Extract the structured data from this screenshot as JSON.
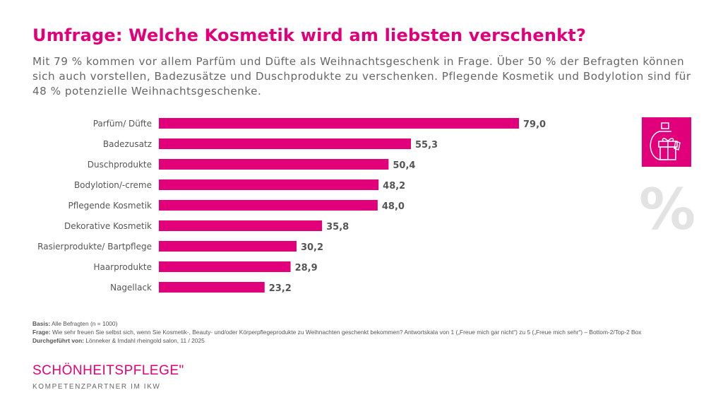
{
  "title": "Umfrage: Welche Kosmetik wird am liebsten verschenkt?",
  "subtitle": "Mit 79 % kommen vor allem Parfüm und Düfte als Weihnachtsgeschenk in Frage. Über 50 % der Befragten können sich auch vorstellen, Badezusätze und Duschprodukte zu verschenken. Pflegende Kosmetik und Bodylotion sind für 48 % potenzielle Weihnachtsgeschenke.",
  "chart_data": {
    "type": "bar",
    "orientation": "horizontal",
    "categories": [
      "Parfüm/ Düfte",
      "Badezusatz",
      "Duschprodukte",
      "Bodylotion/-creme",
      "Pflegende Kosmetik",
      "Dekorative Kosmetik",
      "Rasierprodukte/ Bartpflege",
      "Haarprodukte",
      "Nagellack"
    ],
    "values": [
      79.0,
      55.3,
      50.4,
      48.2,
      48.0,
      35.8,
      30.2,
      28.9,
      23.2
    ],
    "value_labels": [
      "79,0",
      "55,3",
      "50,4",
      "48,2",
      "48,0",
      "35,8",
      "30,2",
      "28,9",
      "23,2"
    ],
    "unit": "%",
    "bar_color": "#e2007a",
    "grid": false
  },
  "icons": {
    "gift_perfume": "gift-perfume-icon",
    "percent": "%"
  },
  "notes": {
    "basis_label": "Basis:",
    "basis": "Alle Befragten (n = 1000)",
    "frage_label": "Frage:",
    "frage": "Wie sehr freuen Sie selbst sich, wenn Sie Kosmetik-, Beauty- und/oder Körperpflegeprodukte zu Weihnachten geschenkt bekommen? Antwortskala von 1 („Freue mich gar nicht“) zu 5  („Freue mich sehr“) – Bottom-2/Top-2 Box",
    "durch_label": "Durchgeführt von:",
    "durch": "Lönneker & Imdahl rheingold salon, 11 / 2025"
  },
  "logo": {
    "name": "SCHÖNHEITSPFLEGE\"",
    "tagline": "KOMPETENZPARTNER IM IKW"
  },
  "colors": {
    "accent": "#e2007a"
  }
}
